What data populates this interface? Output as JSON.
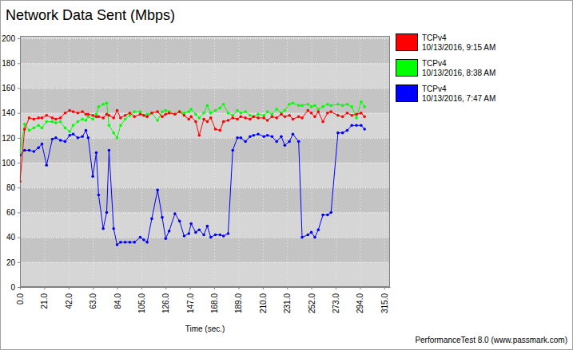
{
  "chart_data": {
    "type": "line",
    "title": "Network Data Sent (Mbps)",
    "xlabel": "Time (sec.)",
    "footer": "PerformanceTest 8.0 (www.passmark.com)",
    "x": [
      0,
      4,
      8,
      12,
      16,
      19,
      23,
      28,
      31,
      35,
      39,
      43,
      46,
      50,
      54,
      57,
      59,
      63,
      66,
      68,
      72,
      75,
      77,
      81,
      84,
      87,
      91,
      95,
      99,
      104,
      107,
      110,
      114,
      119,
      123,
      126,
      129,
      134,
      138,
      142,
      146,
      148,
      152,
      155,
      159,
      162,
      165,
      169,
      173,
      176,
      180,
      184,
      188,
      191,
      195,
      199,
      202,
      206,
      211,
      214,
      218,
      222,
      226,
      229,
      233,
      236,
      241,
      244,
      249,
      252,
      255,
      258,
      262,
      266,
      269,
      275,
      279,
      283,
      287,
      291,
      295,
      298
    ],
    "series": [
      {
        "name": "TCPv4",
        "date": "10/13/2016, 9:15 AM",
        "color": "#ff0000",
        "marker": "circle",
        "values": [
          85,
          127,
          136,
          135,
          136,
          136,
          138,
          136,
          135,
          136,
          140,
          142,
          141,
          140,
          141,
          139,
          139,
          138,
          137,
          137,
          136,
          139,
          138,
          136,
          142,
          136,
          138,
          140,
          137,
          139,
          138,
          137,
          140,
          141,
          137,
          139,
          140,
          139,
          141,
          138,
          135,
          137,
          133,
          122,
          135,
          133,
          136,
          127,
          126,
          133,
          134,
          136,
          135,
          137,
          136,
          135,
          137,
          136,
          136,
          134,
          137,
          136,
          139,
          137,
          138,
          135,
          137,
          136,
          142,
          140,
          137,
          141,
          133,
          140,
          141,
          138,
          137,
          140,
          138,
          139,
          140,
          137
        ]
      },
      {
        "name": "TCPv4",
        "date": "10/13/2016, 8:38 AM",
        "color": "#00ff00",
        "marker": "circle",
        "values": [
          108,
          131,
          126,
          128,
          130,
          128,
          133,
          133,
          132,
          133,
          128,
          125,
          130,
          133,
          135,
          134,
          137,
          135,
          139,
          145,
          147,
          148,
          130,
          124,
          120,
          130,
          135,
          138,
          141,
          141,
          138,
          139,
          140,
          134,
          141,
          142,
          141,
          139,
          141,
          140,
          141,
          143,
          139,
          136,
          140,
          146,
          140,
          142,
          144,
          147,
          140,
          138,
          142,
          140,
          141,
          138,
          137,
          139,
          138,
          141,
          139,
          143,
          140,
          142,
          147,
          148,
          146,
          146,
          147,
          145,
          146,
          143,
          145,
          147,
          146,
          147,
          146,
          147,
          145,
          136,
          149,
          145
        ]
      },
      {
        "name": "TCPv4",
        "date": "10/13/2016, 7:47 AM",
        "color": "#0000ff",
        "marker": "circle",
        "values": [
          106,
          110,
          110,
          109,
          112,
          115,
          98,
          119,
          120,
          118,
          117,
          122,
          123,
          120,
          121,
          126,
          120,
          89,
          108,
          74,
          47,
          60,
          110,
          47,
          34,
          36,
          36,
          36,
          36,
          40,
          38,
          36,
          55,
          78,
          56,
          39,
          45,
          59,
          53,
          41,
          43,
          51,
          44,
          46,
          42,
          49,
          40,
          42,
          42,
          41,
          43,
          110,
          120,
          120,
          117,
          121,
          122,
          123,
          121,
          122,
          121,
          117,
          121,
          114,
          117,
          123,
          117,
          40,
          42,
          44,
          40,
          46,
          58,
          58,
          60,
          124,
          124,
          126,
          130,
          130,
          130,
          127
        ]
      }
    ],
    "xlim": [
      0,
      320
    ],
    "xticks": [
      {
        "value": 0,
        "label": "0.0"
      },
      {
        "value": 21,
        "label": "21.0"
      },
      {
        "value": 42,
        "label": "42.0"
      },
      {
        "value": 63,
        "label": "63.0"
      },
      {
        "value": 84,
        "label": "84.0"
      },
      {
        "value": 105,
        "label": "105.0"
      },
      {
        "value": 126,
        "label": "126.0"
      },
      {
        "value": 147,
        "label": "147.0"
      },
      {
        "value": 168,
        "label": "168.0"
      },
      {
        "value": 189,
        "label": "189.0"
      },
      {
        "value": 210,
        "label": "210.0"
      },
      {
        "value": 231,
        "label": "231.0"
      },
      {
        "value": 252,
        "label": "252.0"
      },
      {
        "value": 273,
        "label": "273.0"
      },
      {
        "value": 294,
        "label": "294.0"
      },
      {
        "value": 315,
        "label": "315.0"
      }
    ],
    "ylim": [
      0,
      202
    ],
    "yticks": [
      0,
      20,
      40,
      60,
      80,
      100,
      120,
      140,
      160,
      180,
      200
    ],
    "grid": true,
    "legend": "right"
  }
}
